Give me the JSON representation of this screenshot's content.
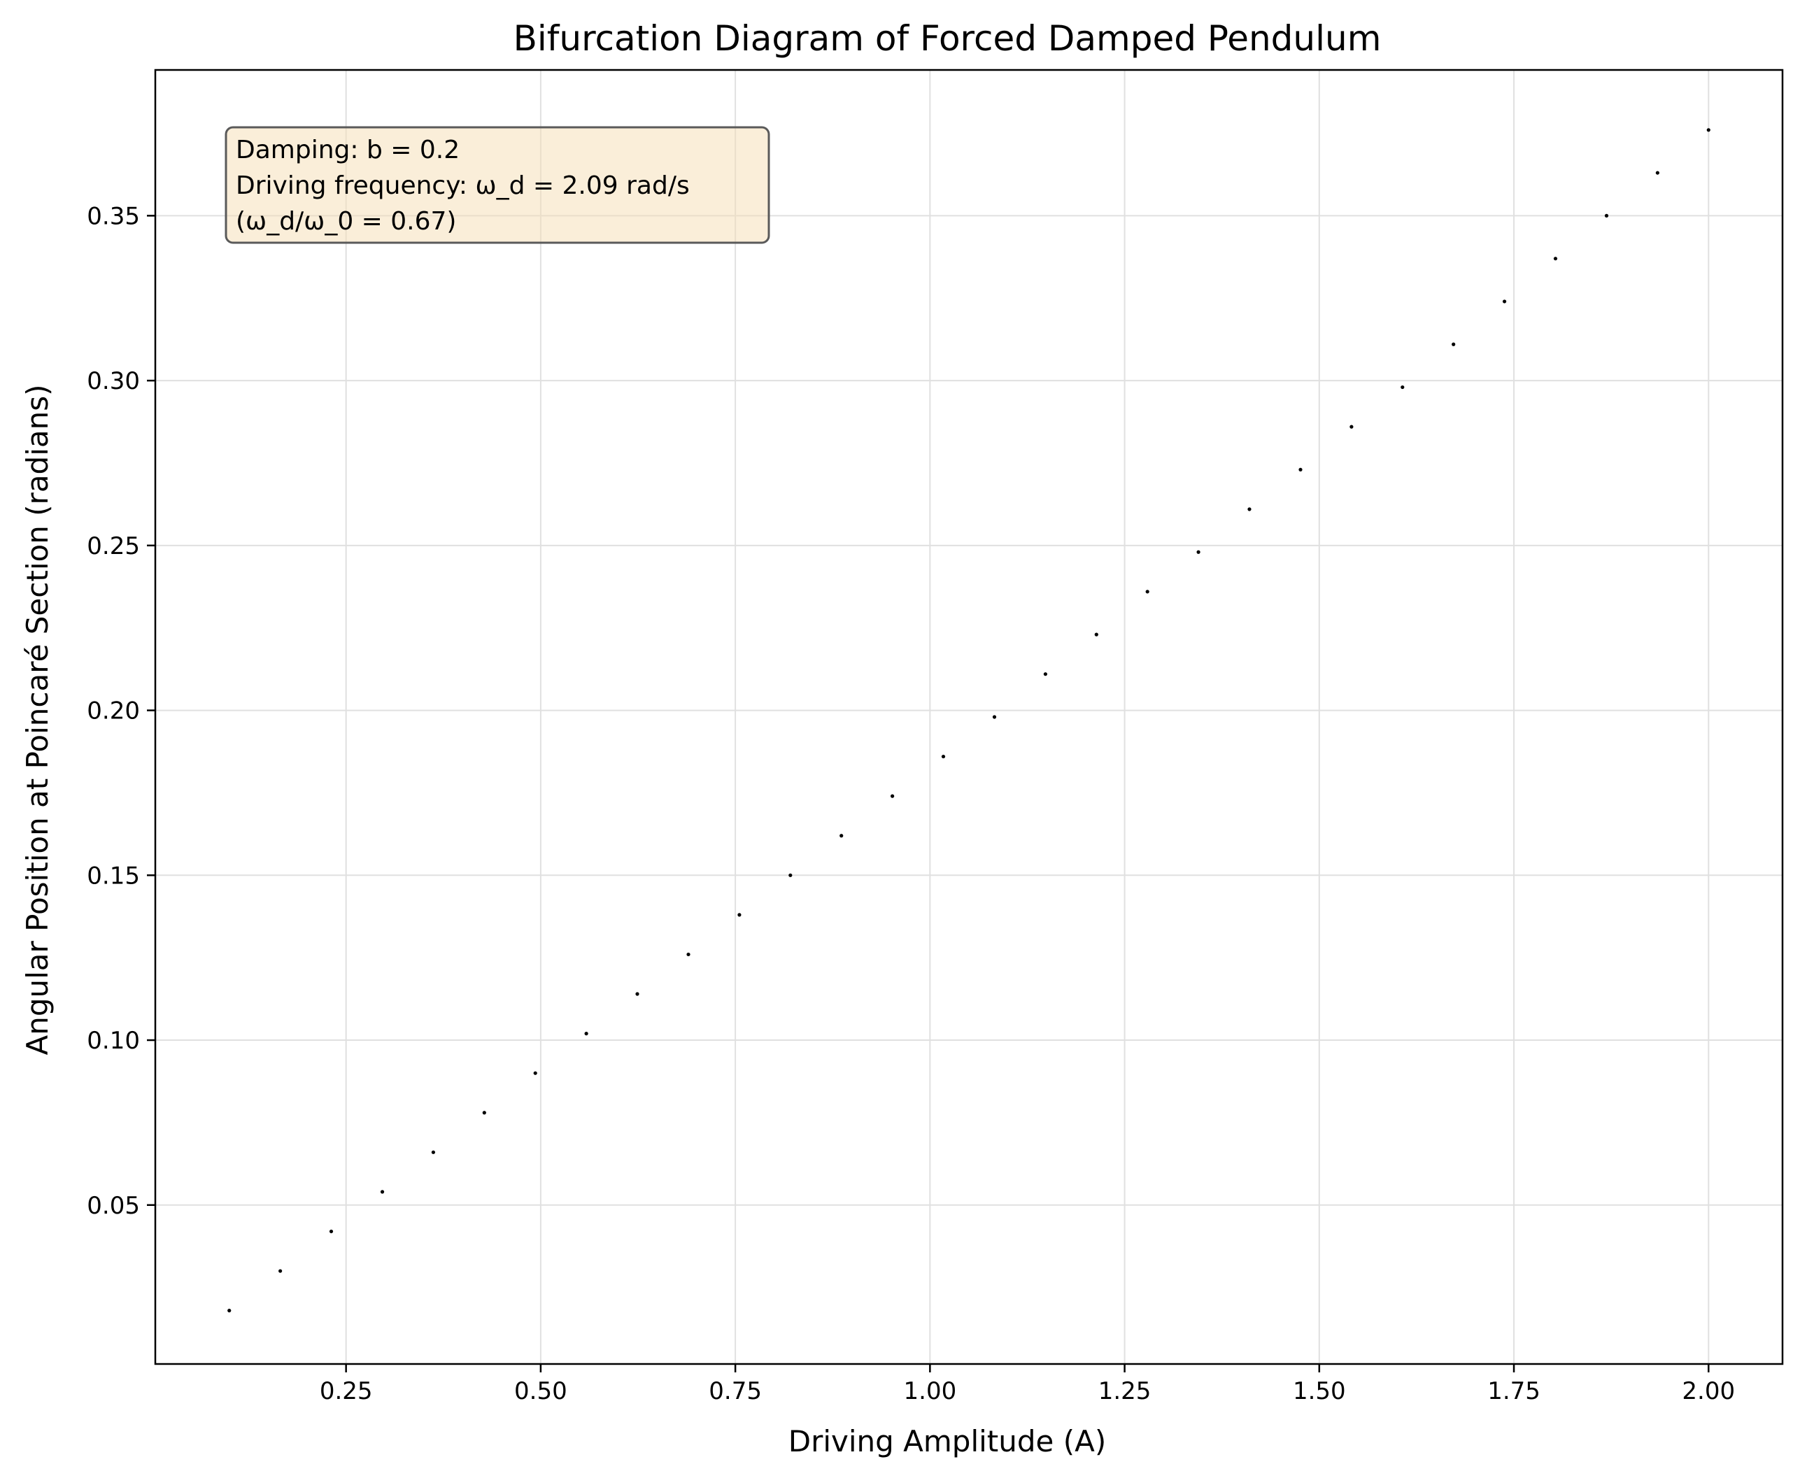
{
  "chart_data": {
    "type": "scatter",
    "title": "Bifurcation Diagram of Forced Damped Pendulum",
    "xlabel": "Driving Amplitude (A)",
    "ylabel": "Angular Position at Poincaré Section (radians)",
    "xlim": [
      0.005,
      2.095
    ],
    "ylim": [
      0.0018,
      0.3942
    ],
    "xticks": [
      0.25,
      0.5,
      0.75,
      1.0,
      1.25,
      1.5,
      1.75,
      2.0
    ],
    "xtick_labels": [
      "0.25",
      "0.50",
      "0.75",
      "1.00",
      "1.25",
      "1.50",
      "1.75",
      "2.00"
    ],
    "yticks": [
      0.05,
      0.1,
      0.15,
      0.2,
      0.25,
      0.3,
      0.35
    ],
    "ytick_labels": [
      "0.05",
      "0.10",
      "0.15",
      "0.20",
      "0.25",
      "0.30",
      "0.35"
    ],
    "grid": true,
    "marker_color": "#000000",
    "annotation": {
      "lines": [
        "Damping: b = 0.2",
        "Driving frequency: ω_d = 2.09 rad/s",
        "(ω_d/ω_0 = 0.67)"
      ],
      "placement": "top-left",
      "background": "#f5deb3",
      "border": "#5a5a5a"
    },
    "series": [
      {
        "x": [
          0.1,
          0.1655,
          0.231,
          0.2966,
          0.3621,
          0.4276,
          0.4931,
          0.5586,
          0.6241,
          0.6897,
          0.7552,
          0.8207,
          0.8862,
          0.9517,
          1.0172,
          1.0828,
          1.1483,
          1.2138,
          1.2793,
          1.3448,
          1.4103,
          1.4759,
          1.5414,
          1.6069,
          1.6724,
          1.7379,
          1.8034,
          1.869,
          1.9345,
          2.0
        ],
        "y": [
          0.018,
          0.03,
          0.042,
          0.054,
          0.066,
          0.078,
          0.09,
          0.102,
          0.114,
          0.126,
          0.138,
          0.15,
          0.162,
          0.174,
          0.186,
          0.198,
          0.211,
          0.223,
          0.236,
          0.248,
          0.261,
          0.273,
          0.286,
          0.298,
          0.311,
          0.324,
          0.337,
          0.35,
          0.363,
          0.376
        ]
      }
    ]
  }
}
